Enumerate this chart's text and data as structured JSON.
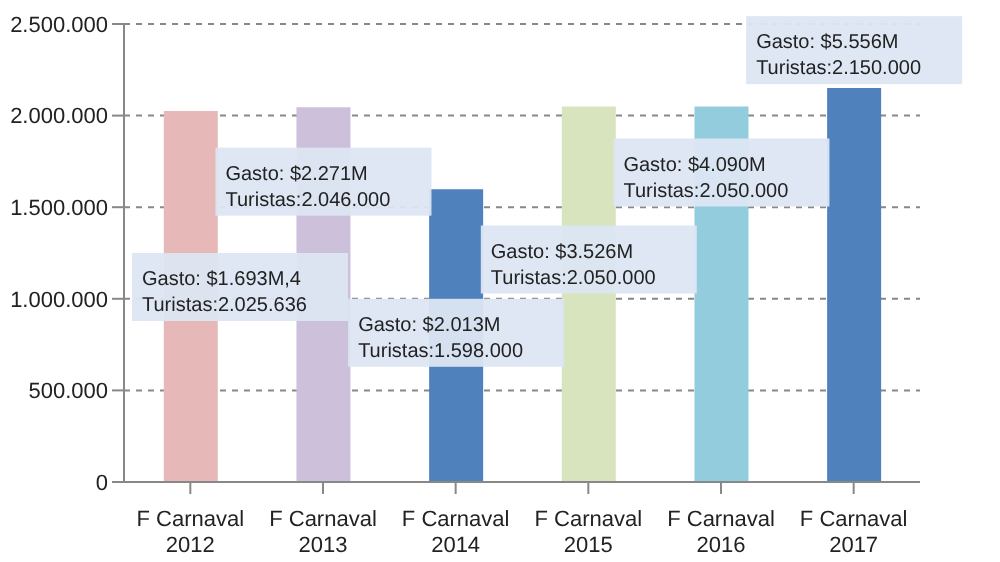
{
  "chart_data": {
    "type": "bar",
    "categories": [
      "F Carnaval 2012",
      "F Carnaval 2013",
      "F Carnaval 2014",
      "F Carnaval 2015",
      "F Carnaval 2016",
      "F Carnaval 2017"
    ],
    "values": [
      2025636,
      2046000,
      1598000,
      2050000,
      2050000,
      2150000
    ],
    "colors": [
      "#e6b9b8",
      "#ccc0da",
      "#4f81bd",
      "#d7e4bd",
      "#93cddd",
      "#4f81bd"
    ],
    "value_labels": [
      "Gasto: $1.693M,4\nTuristas:2.025.636",
      "Gasto: $2.271M\nTuristas:2.046.000",
      "Gasto: $2.013M\nTuristas:1.598.000",
      "Gasto: $3.526M\nTuristas:2.050.000",
      "Gasto: $4.090M\nTuristas:2.050.000",
      "Gasto: $5.556M\nTuristas:2.150.000"
    ],
    "ylim": [
      0,
      2500000
    ],
    "yticks": [
      0,
      {
        "value": 500000,
        "label": "500.000"
      },
      {
        "value": 1000000,
        "label": "1.000.000"
      },
      {
        "value": 1500000,
        "label": "1.500.000"
      },
      {
        "value": 2000000,
        "label": "2.000.000"
      },
      {
        "value": 2500000,
        "label": "2.500.000"
      }
    ],
    "grid": "y"
  }
}
